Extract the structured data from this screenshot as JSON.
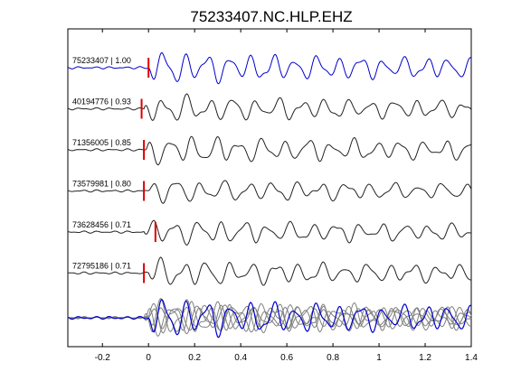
{
  "chart_data": {
    "type": "line",
    "title": "75233407.NC.HLP.EHZ",
    "xlabel": "",
    "ylabel": "",
    "xlim": [
      -0.35,
      1.4
    ],
    "xticks": [
      -0.2,
      0,
      0.2,
      0.4,
      0.6,
      0.8,
      1,
      1.2,
      1.4
    ],
    "xtick_labels": [
      "-0.2",
      "0",
      "0.2",
      "0.4",
      "0.6",
      "0.8",
      "1",
      "1.2",
      "1.4"
    ],
    "grid": false,
    "legend": "none",
    "series": [
      {
        "name": "75233407 | 1.00",
        "label": "75233407 | 1.00",
        "color": "#0000cc",
        "pick_time": 0.0,
        "onset": 0.0,
        "period": 0.095,
        "amp": 1.0,
        "seed": 1
      },
      {
        "name": "40194776 | 0.93",
        "label": "40194776 | 0.93",
        "color": "#222222",
        "pick_time": -0.03,
        "onset": -0.02,
        "period": 0.1,
        "amp": 0.85,
        "seed": 2
      },
      {
        "name": "71356005 | 0.85",
        "label": "71356005 | 0.85",
        "color": "#222222",
        "pick_time": -0.02,
        "onset": -0.01,
        "period": 0.1,
        "amp": 0.9,
        "seed": 3
      },
      {
        "name": "73579981 | 0.80",
        "label": "73579981 | 0.80",
        "color": "#222222",
        "pick_time": -0.02,
        "onset": -0.005,
        "period": 0.105,
        "amp": 0.75,
        "seed": 4
      },
      {
        "name": "73628456 | 0.71",
        "label": "73628456 | 0.71",
        "color": "#222222",
        "pick_time": 0.03,
        "onset": -0.02,
        "period": 0.1,
        "amp": 0.8,
        "seed": 5
      },
      {
        "name": "72795186 | 0.71",
        "label": "72795186 | 0.71",
        "color": "#222222",
        "pick_time": -0.02,
        "onset": 0.0,
        "period": 0.1,
        "amp": 0.85,
        "seed": 6
      }
    ],
    "stack": {
      "primary_color": "#0000cc",
      "others_color": "#808080"
    },
    "pick_color": "#dd0000"
  }
}
